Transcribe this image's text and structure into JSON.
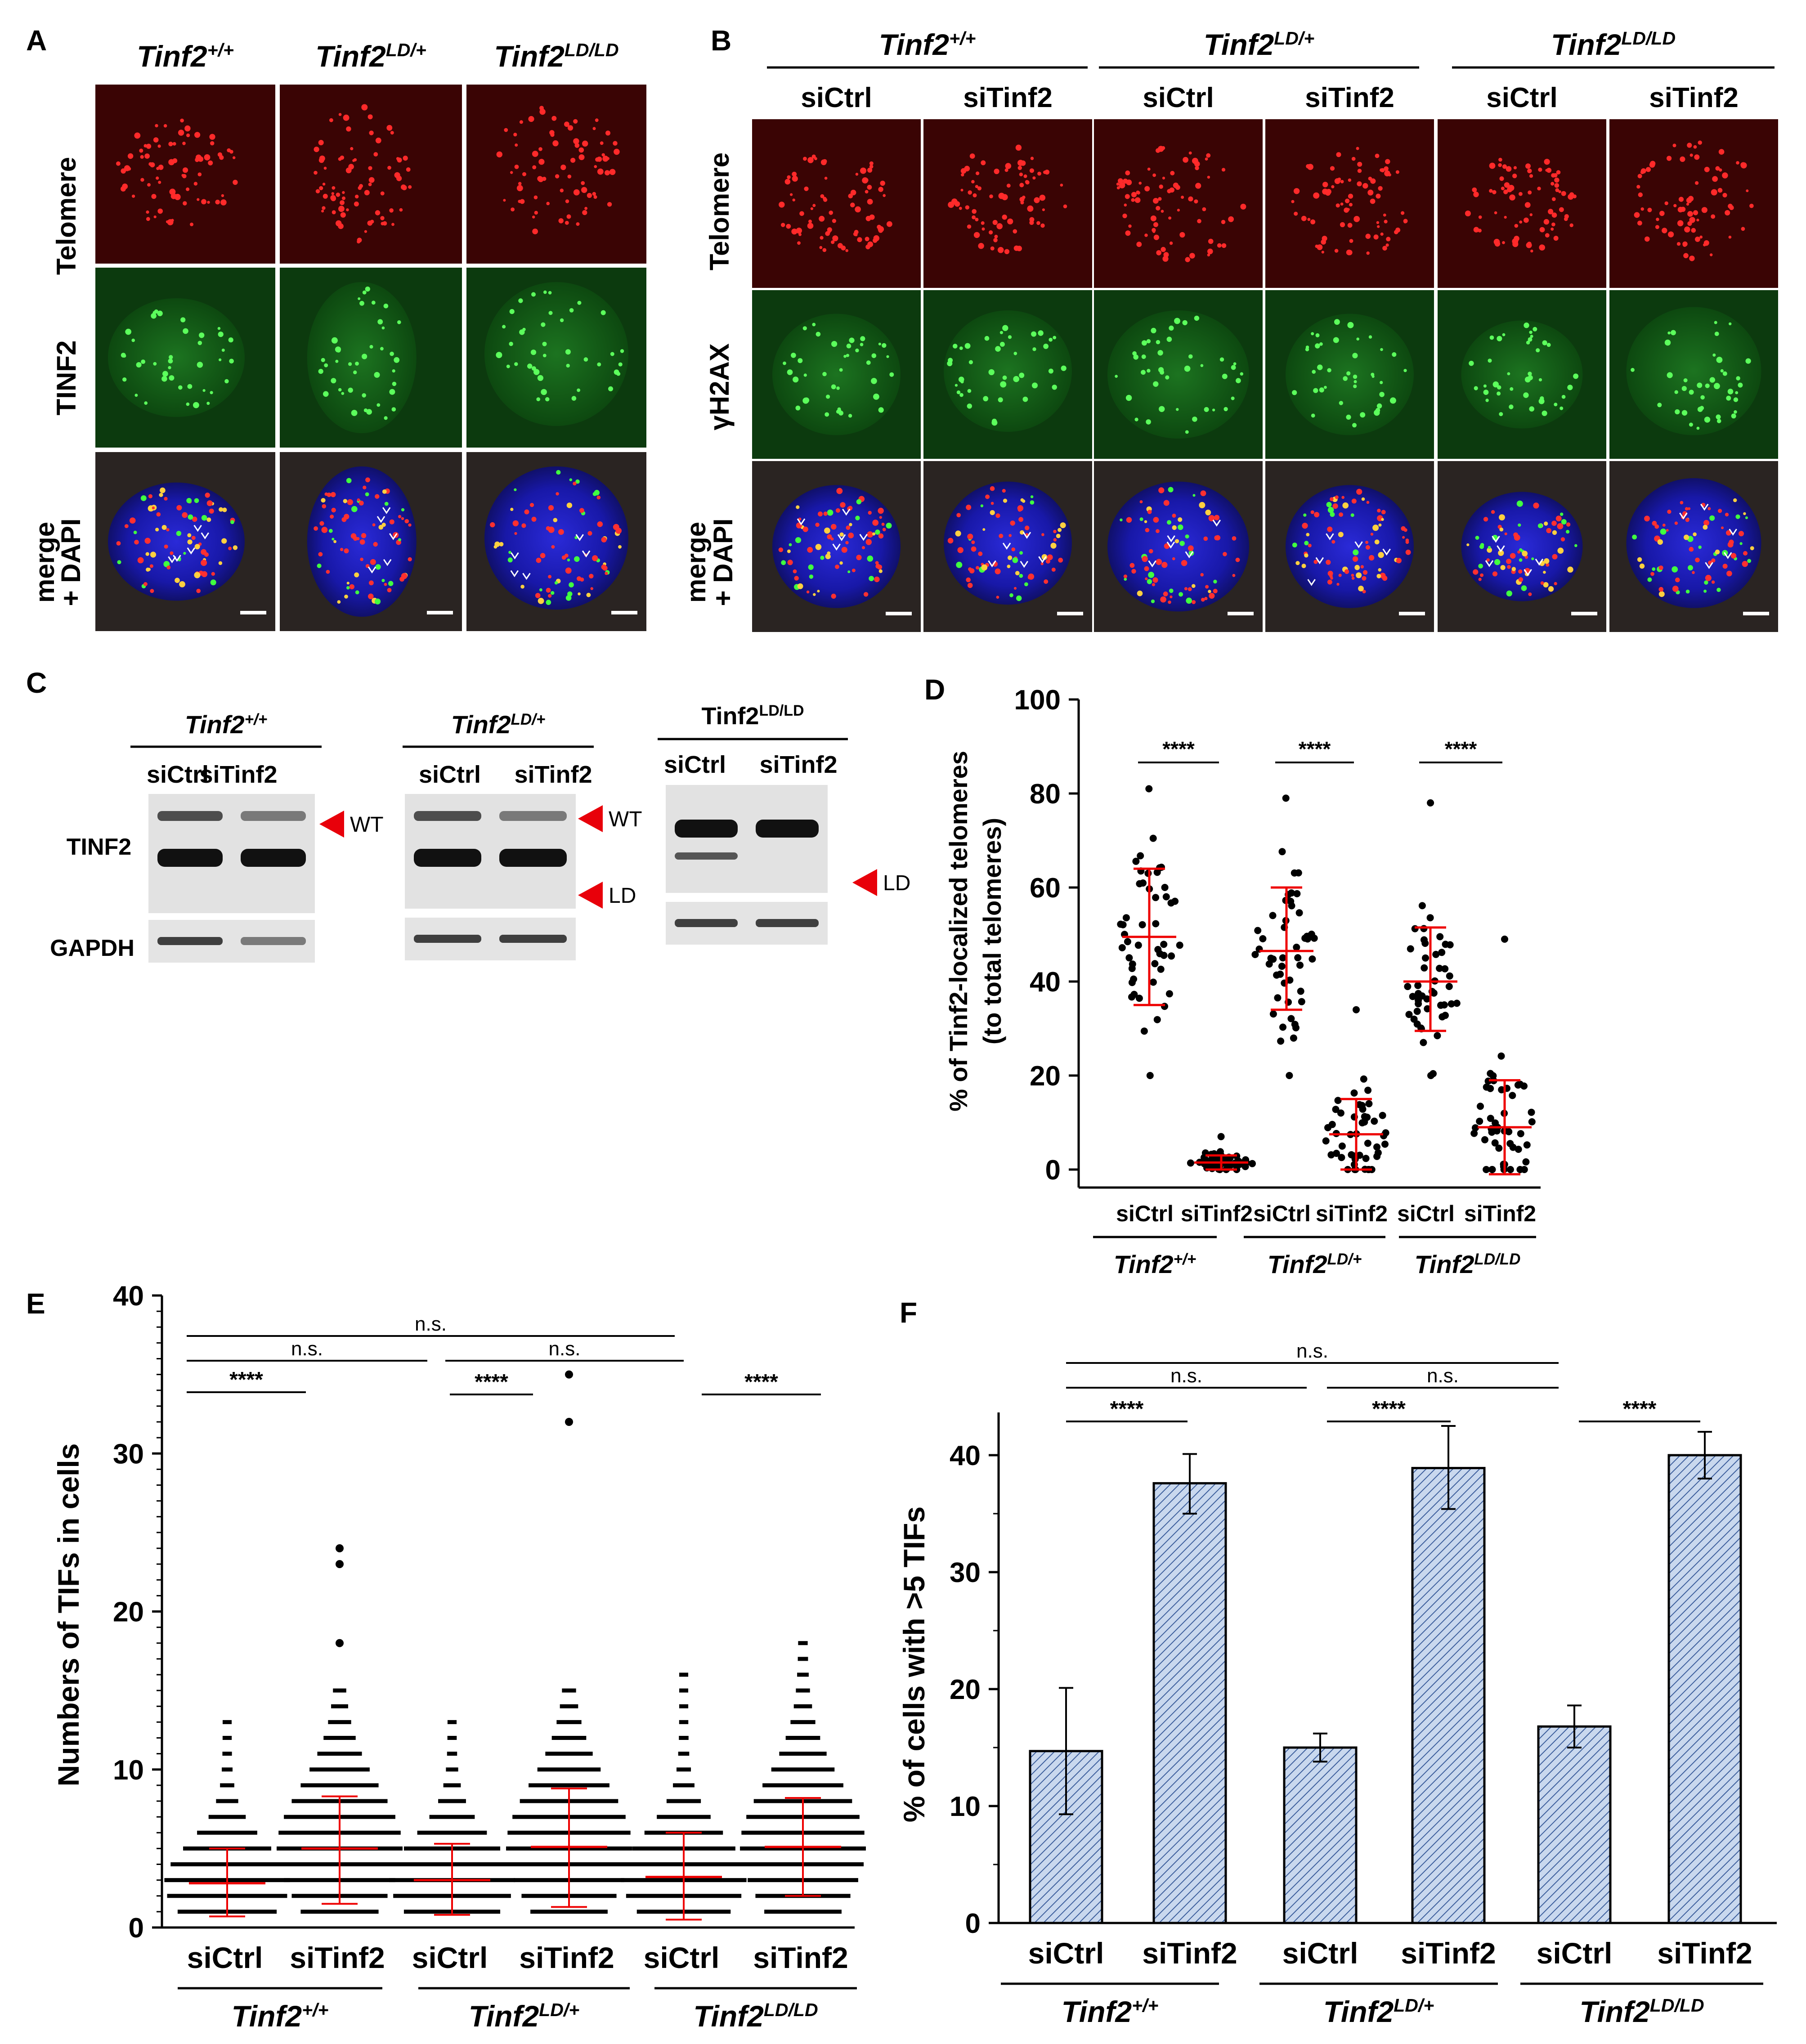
{
  "panelA": {
    "letter": "A",
    "columns": [
      {
        "base": "Tinf2",
        "sup": "+/+"
      },
      {
        "base": "Tinf2",
        "sup": "LD/+"
      },
      {
        "base": "Tinf2",
        "sup": "LD/LD"
      }
    ],
    "rows": [
      "Telomere",
      "TINF2",
      "merge",
      "+ DAPI"
    ]
  },
  "panelB": {
    "letter": "B",
    "genotypes": [
      {
        "base": "Tinf2",
        "sup": "+/+"
      },
      {
        "base": "Tinf2",
        "sup": "LD/+"
      },
      {
        "base": "Tinf2",
        "sup": "LD/LD"
      }
    ],
    "conditions": [
      "siCtrl",
      "siTinf2",
      "siCtrl",
      "siTinf2",
      "siCtrl",
      "siTinf2"
    ],
    "rows": [
      "Telomere",
      "γH2AX",
      "merge",
      "+ DAPI"
    ]
  },
  "panelC": {
    "letter": "C",
    "genotypes": [
      {
        "base": "Tinf2",
        "sup": "+/+"
      },
      {
        "base": "Tinf2",
        "sup": "LD/+"
      },
      {
        "base": "Tinf2",
        "sup": "LD/LD"
      }
    ],
    "conditions": [
      "siCtrl",
      "siTinf2",
      "siCtrl",
      "siTinf2",
      "siCtrl",
      "siTinf2"
    ],
    "row_labels": [
      "TINF2",
      "GAPDH"
    ],
    "band_labels": [
      "WT",
      "WT",
      "LD",
      "LD"
    ]
  },
  "panelD": {
    "letter": "D",
    "ylabel": "% of Tinf2-localized telomeres",
    "ylabel2": "(to total telomeres)",
    "conditions": [
      "siCtrl",
      "siTinf2",
      "siCtrl",
      "siTinf2",
      "siCtrl",
      "siTinf2"
    ],
    "genotypes": [
      {
        "base": "Tinf2",
        "sup": "+/+"
      },
      {
        "base": "Tinf2",
        "sup": "LD/+"
      },
      {
        "base": "Tinf2",
        "sup": "LD/LD"
      }
    ],
    "stars": [
      "****",
      "****",
      "****"
    ],
    "chart_data": {
      "type": "scatter",
      "ylim": [
        0,
        100
      ],
      "yticks": [
        "0",
        "20",
        "40",
        "60",
        "80",
        "100"
      ],
      "groups": [
        {
          "mean": 49.5,
          "sd_low": 35,
          "sd_high": 64,
          "min": 20,
          "max": 81
        },
        {
          "mean": 1.5,
          "sd_low": 0,
          "sd_high": 3,
          "min": 0,
          "max": 7
        },
        {
          "mean": 46.5,
          "sd_low": 34,
          "sd_high": 60,
          "min": 20,
          "max": 79
        },
        {
          "mean": 7.5,
          "sd_low": 0,
          "sd_high": 15,
          "min": 0,
          "max": 34
        },
        {
          "mean": 40,
          "sd_low": 29.5,
          "sd_high": 51.5,
          "min": 20,
          "max": 78
        },
        {
          "mean": 9,
          "sd_low": -1,
          "sd_high": 19,
          "min": 0,
          "max": 49
        }
      ]
    }
  },
  "panelE": {
    "letter": "E",
    "ylabel": "Numbers of TIFs in cells",
    "conditions": [
      "siCtrl",
      "siTinf2",
      "siCtrl",
      "siTinf2",
      "siCtrl",
      "siTinf2"
    ],
    "genotypes": [
      {
        "base": "Tinf2",
        "sup": "+/+"
      },
      {
        "base": "Tinf2",
        "sup": "LD/+"
      },
      {
        "base": "Tinf2",
        "sup": "LD/LD"
      }
    ],
    "ns": [
      "n.s.",
      "n.s.",
      "n.s."
    ],
    "stars": [
      "****",
      "****",
      "****"
    ],
    "chart_data": {
      "type": "scatter",
      "ylim": [
        0,
        40
      ],
      "yticks": [
        "0",
        "10",
        "20",
        "30",
        "40"
      ],
      "groups": [
        {
          "mean": 2.8,
          "sd_low": 0.7,
          "sd_high": 5,
          "max": 13,
          "outliers": []
        },
        {
          "mean": 5,
          "sd_low": 1.5,
          "sd_high": 8.3,
          "max": 15,
          "outliers": [
            18,
            23,
            24
          ]
        },
        {
          "mean": 3,
          "sd_low": 0.8,
          "sd_high": 5.3,
          "max": 13,
          "outliers": []
        },
        {
          "mean": 5.1,
          "sd_low": 1.3,
          "sd_high": 8.8,
          "max": 15,
          "outliers": [
            32,
            35
          ]
        },
        {
          "mean": 3.2,
          "sd_low": 0.5,
          "sd_high": 6,
          "max": 16,
          "outliers": []
        },
        {
          "mean": 5.1,
          "sd_low": 2,
          "sd_high": 8.2,
          "max": 18,
          "outliers": []
        }
      ]
    }
  },
  "panelF": {
    "letter": "F",
    "ylabel": "% of cells with >5 TIFs",
    "conditions": [
      "siCtrl",
      "siTinf2",
      "siCtrl",
      "siTinf2",
      "siCtrl",
      "siTinf2"
    ],
    "genotypes": [
      {
        "base": "Tinf2",
        "sup": "+/+"
      },
      {
        "base": "Tinf2",
        "sup": "LD/+"
      },
      {
        "base": "Tinf2",
        "sup": "LD/LD"
      }
    ],
    "ns": [
      "n.s.",
      "n.s.",
      "n.s."
    ],
    "stars": [
      "****",
      "****",
      "****"
    ],
    "chart_data": {
      "type": "bar",
      "ylim": [
        0,
        45
      ],
      "yticks": [
        "0",
        "10",
        "20",
        "30",
        "40"
      ],
      "values": [
        14.7,
        37.6,
        15.0,
        38.9,
        16.8,
        40.0
      ],
      "err_low": [
        9.3,
        35.0,
        13.8,
        35.4,
        15.0,
        38.0
      ],
      "err_high": [
        20.1,
        40.1,
        16.2,
        42.5,
        18.6,
        42.0
      ]
    }
  }
}
